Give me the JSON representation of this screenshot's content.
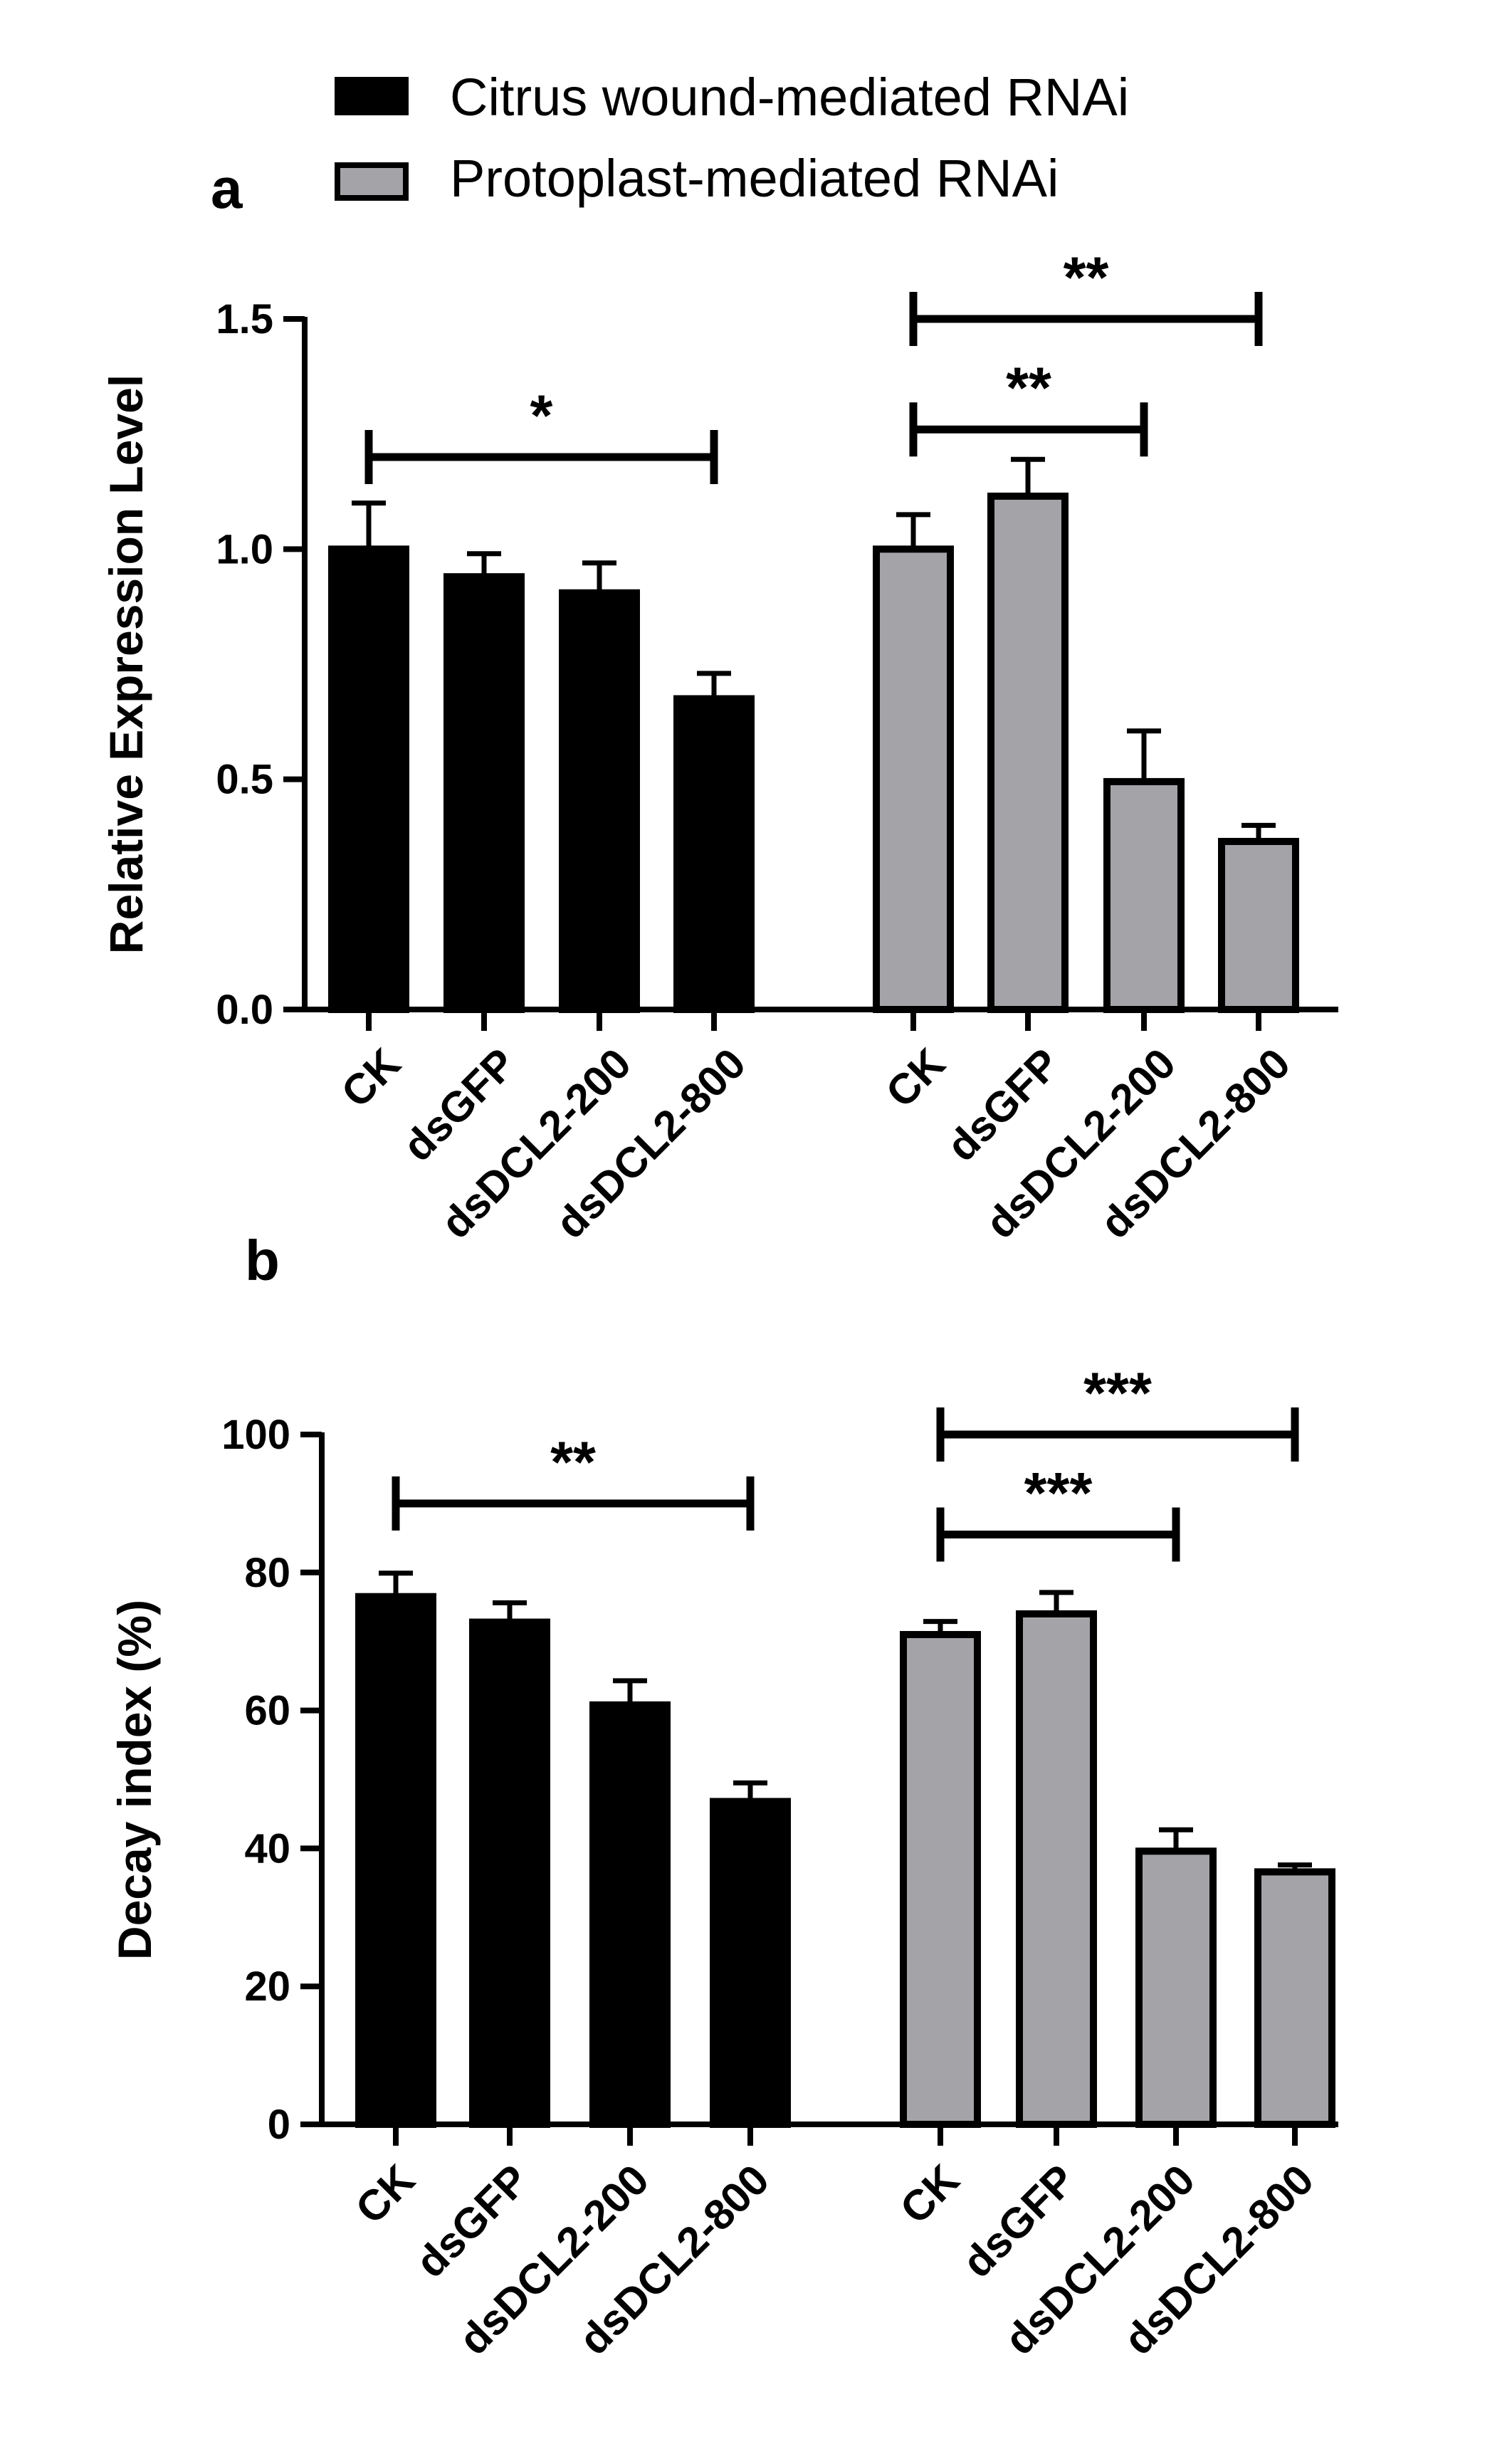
{
  "legend": {
    "series": [
      {
        "name": "Citrus wound-mediated RNAi",
        "color": "#000000"
      },
      {
        "name": "Protoplast-mediated RNAi",
        "color": "#a3a3a8"
      }
    ]
  },
  "colors": {
    "wound": "#000000",
    "protoplast": "#a3a3a8",
    "axis": "#000000"
  },
  "chart_data": [
    {
      "panel": "a",
      "type": "bar",
      "ylabel": "Relative Expression Level",
      "xlabel": "",
      "ylim": [
        0,
        1.5
      ],
      "yticks": [
        "0.0",
        "0.5",
        "1.0",
        "1.5"
      ],
      "groups": [
        {
          "series": "Citrus wound-mediated RNAi",
          "categories": [
            "CK",
            "dsGFP",
            "dsDCL2-200",
            "dsDCL2-800"
          ],
          "values": [
            1.0,
            0.94,
            0.905,
            0.675
          ],
          "errors": [
            0.1,
            0.05,
            0.065,
            0.055
          ]
        },
        {
          "series": "Protoplast-mediated RNAi",
          "categories": [
            "CK",
            "dsGFP",
            "dsDCL2-200",
            "dsDCL2-800"
          ],
          "values": [
            1.0,
            1.115,
            0.495,
            0.365
          ],
          "errors": [
            0.075,
            0.08,
            0.11,
            0.035
          ]
        }
      ],
      "annotations": [
        {
          "label": "*",
          "group": 0,
          "from": 0,
          "to": 3,
          "y": 1.2
        },
        {
          "label": "**",
          "group": 1,
          "from": 0,
          "to": 2,
          "y": 1.26
        },
        {
          "label": "**",
          "group": 1,
          "from": 0,
          "to": 3,
          "y": 1.5
        }
      ]
    },
    {
      "panel": "b",
      "type": "bar",
      "ylabel": "Decay index (%)",
      "xlabel": "",
      "ylim": [
        0,
        100
      ],
      "yticks": [
        "0",
        "20",
        "40",
        "60",
        "80",
        "100"
      ],
      "groups": [
        {
          "series": "Citrus wound-mediated RNAi",
          "categories": [
            "CK",
            "dsGFP",
            "dsDCL2-200",
            "dsDCL2-800"
          ],
          "values": [
            76.5,
            72.8,
            60.8,
            46.8
          ],
          "errors": [
            3.4,
            2.8,
            3.5,
            2.7
          ]
        },
        {
          "series": "Protoplast-mediated RNAi",
          "categories": [
            "CK",
            "dsGFP",
            "dsDCL2-200",
            "dsDCL2-800"
          ],
          "values": [
            71.0,
            74.0,
            39.6,
            36.6
          ],
          "errors": [
            1.9,
            3.1,
            3.1,
            1.0
          ]
        }
      ],
      "annotations": [
        {
          "label": "**",
          "group": 0,
          "from": 0,
          "to": 3,
          "y": 90
        },
        {
          "label": "***",
          "group": 1,
          "from": 0,
          "to": 2,
          "y": 85.5
        },
        {
          "label": "***",
          "group": 1,
          "from": 0,
          "to": 3,
          "y": 100
        }
      ]
    }
  ]
}
